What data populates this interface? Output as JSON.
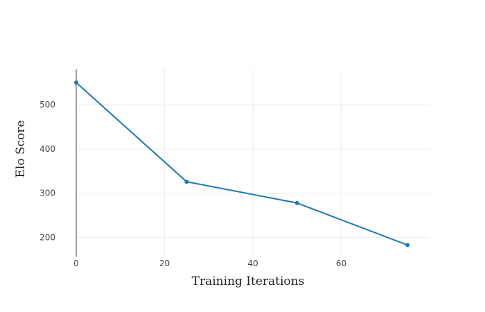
{
  "chart_data": {
    "type": "line",
    "title": "",
    "xlabel": "Training Iterations",
    "ylabel": "Elo Score",
    "xlim": [
      0,
      80
    ],
    "ylim": [
      157,
      580
    ],
    "x_ticks": [
      0,
      20,
      40,
      60
    ],
    "y_ticks": [
      200,
      300,
      400,
      500
    ],
    "x_tick_labels": [
      "0",
      "20",
      "40",
      "60"
    ],
    "y_tick_labels": [
      "200",
      "300",
      "400",
      "500"
    ],
    "grid": true,
    "legend": "none",
    "series": [
      {
        "color": "#1f77b4",
        "x": [
          0,
          25,
          50,
          75
        ],
        "y": [
          550,
          326,
          278,
          183
        ]
      }
    ]
  }
}
